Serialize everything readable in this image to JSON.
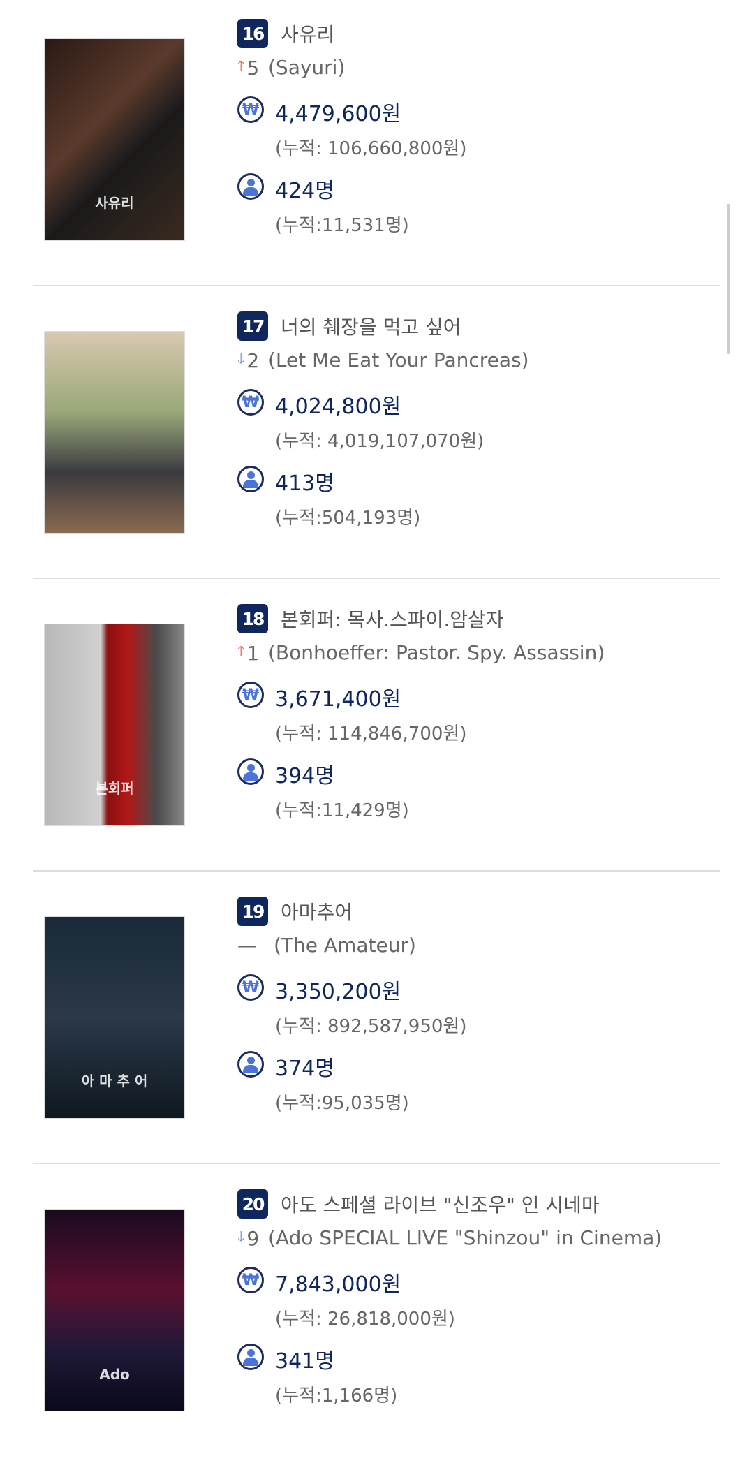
{
  "colors": {
    "badge": "#10275e",
    "up": "#f05a4a",
    "down": "#6b8fd6",
    "value": "#10275e",
    "icon": "#4a74d9"
  },
  "movies": [
    {
      "rank": "16",
      "title_ko": "사유리",
      "change_dir": "up",
      "change_icon": "arrow-up-icon",
      "change": "5",
      "title_en": "(Sayuri)",
      "gross": "4,479,600원",
      "gross_cum": "(누적: 106,660,800원)",
      "audience": "424명",
      "audience_cum": "(누적:11,531명)",
      "poster_title": "사유리"
    },
    {
      "rank": "17",
      "title_ko": "너의 췌장을 먹고 싶어",
      "change_dir": "down",
      "change_icon": "arrow-down-icon",
      "change": "2",
      "title_en": "(Let Me Eat Your Pancreas)",
      "gross": "4,024,800원",
      "gross_cum": "(누적: 4,019,107,070원)",
      "audience": "413명",
      "audience_cum": "(누적:504,193명)",
      "poster_title": ""
    },
    {
      "rank": "18",
      "title_ko": "본회퍼: 목사.스파이.암살자",
      "change_dir": "up",
      "change_icon": "arrow-up-icon",
      "change": "1",
      "title_en": "(Bonhoeffer: Pastor. Spy. Assassin)",
      "gross": "3,671,400원",
      "gross_cum": "(누적: 114,846,700원)",
      "audience": "394명",
      "audience_cum": "(누적:11,429명)",
      "poster_title": "본회퍼"
    },
    {
      "rank": "19",
      "title_ko": "아마추어",
      "change_dir": "flat",
      "change_icon": "dash-icon",
      "change": "",
      "title_en": "(The Amateur)",
      "gross": "3,350,200원",
      "gross_cum": "(누적: 892,587,950원)",
      "audience": "374명",
      "audience_cum": "(누적:95,035명)",
      "poster_title": "아 마 추 어"
    },
    {
      "rank": "20",
      "title_ko": "아도 스페셜 라이브 \"신조우\" 인 시네마",
      "change_dir": "down",
      "change_icon": "arrow-down-icon",
      "change": "9",
      "title_en": "(Ado SPECIAL LIVE \"Shinzou\" in Cinema)",
      "gross": "7,843,000원",
      "gross_cum": "(누적: 26,818,000원)",
      "audience": "341명",
      "audience_cum": "(누적:1,166명)",
      "poster_title": "Ado"
    }
  ]
}
